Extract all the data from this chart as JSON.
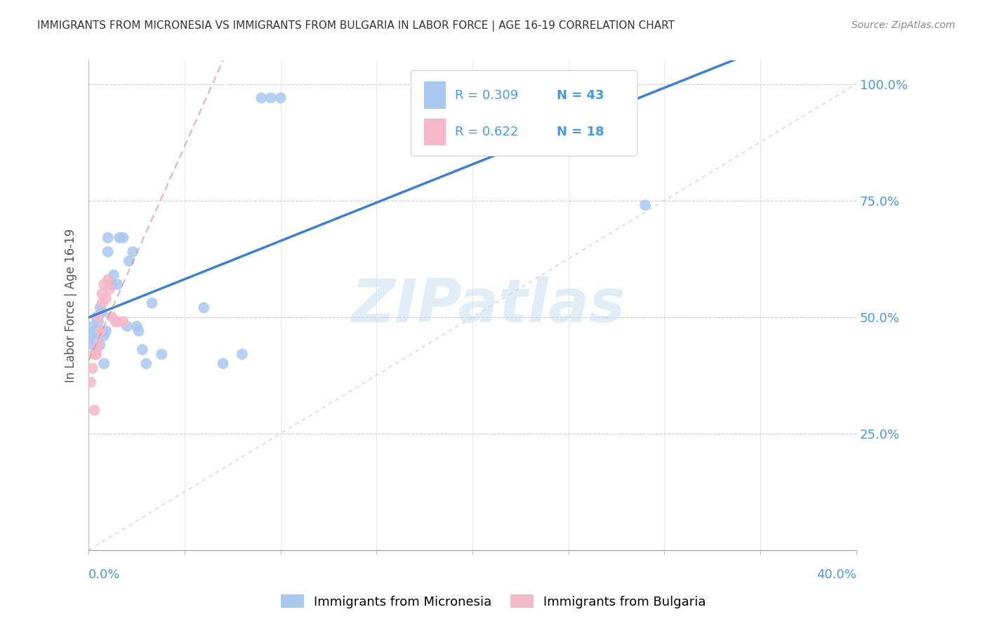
{
  "title": "IMMIGRANTS FROM MICRONESIA VS IMMIGRANTS FROM BULGARIA IN LABOR FORCE | AGE 16-19 CORRELATION CHART",
  "source": "Source: ZipAtlas.com",
  "ylabel": "In Labor Force | Age 16-19",
  "micronesia_color": "#a8c8f0",
  "bulgaria_color": "#f5b8c8",
  "micronesia_line_color": "#3b82d4",
  "bulgaria_line_color": "#e8909a",
  "diagonal_color": "#c8c8c8",
  "watermark": "ZIPatlas",
  "legend_r_micronesia": "0.309",
  "legend_n_micronesia": "43",
  "legend_r_bulgaria": "0.622",
  "legend_n_bulgaria": "18",
  "xlim": [
    0.0,
    0.4
  ],
  "ylim": [
    0.0,
    1.05
  ],
  "mic_x": [
    0.001,
    0.002,
    0.002,
    0.003,
    0.003,
    0.004,
    0.004,
    0.005,
    0.005,
    0.006,
    0.006,
    0.007,
    0.007,
    0.008,
    0.008,
    0.009,
    0.01,
    0.01,
    0.011,
    0.012,
    0.013,
    0.015,
    0.016,
    0.018,
    0.02,
    0.021,
    0.023,
    0.025,
    0.026,
    0.028,
    0.03,
    0.033,
    0.038,
    0.06,
    0.07,
    0.08,
    0.09,
    0.095,
    0.1,
    0.26,
    0.27,
    0.28,
    0.29
  ],
  "mic_y": [
    0.46,
    0.44,
    0.48,
    0.47,
    0.45,
    0.43,
    0.5,
    0.47,
    0.49,
    0.44,
    0.52,
    0.51,
    0.47,
    0.4,
    0.46,
    0.47,
    0.64,
    0.67,
    0.57,
    0.57,
    0.59,
    0.57,
    0.67,
    0.67,
    0.48,
    0.62,
    0.64,
    0.48,
    0.47,
    0.43,
    0.4,
    0.53,
    0.42,
    0.52,
    0.4,
    0.42,
    0.97,
    0.97,
    0.97,
    0.97,
    0.97,
    0.97,
    0.74
  ],
  "bul_x": [
    0.001,
    0.002,
    0.003,
    0.003,
    0.004,
    0.005,
    0.005,
    0.006,
    0.007,
    0.007,
    0.008,
    0.009,
    0.01,
    0.011,
    0.012,
    0.014,
    0.015,
    0.018
  ],
  "bul_y": [
    0.36,
    0.39,
    0.3,
    0.42,
    0.42,
    0.44,
    0.5,
    0.47,
    0.55,
    0.53,
    0.57,
    0.54,
    0.58,
    0.56,
    0.5,
    0.49,
    0.49,
    0.49
  ],
  "mic_trend_x0": 0.0,
  "mic_trend_y0": 0.44,
  "mic_trend_x1": 0.4,
  "mic_trend_y1": 0.91,
  "bul_trend_x0": 0.0,
  "bul_trend_y0": 0.37,
  "bul_trend_x1": 0.02,
  "bul_trend_y1": 0.57
}
